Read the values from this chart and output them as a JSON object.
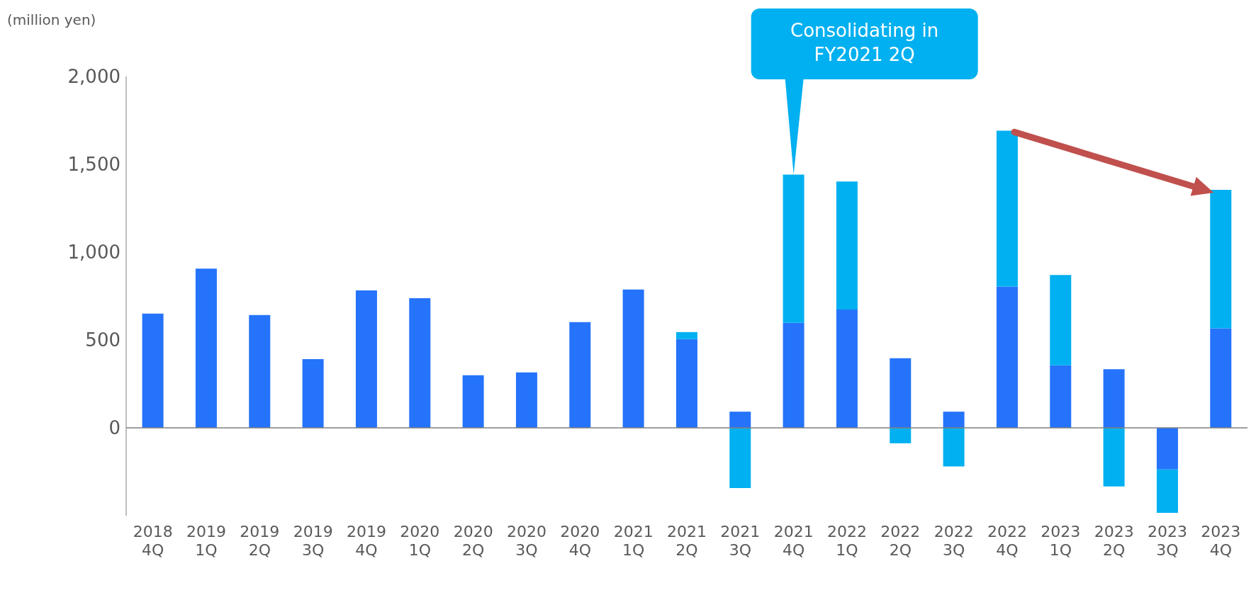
{
  "chart_data": {
    "type": "bar",
    "stacked": true,
    "ylabel": "(million yen)",
    "categories": [
      "2018 4Q",
      "2019 1Q",
      "2019 2Q",
      "2019 3Q",
      "2019 4Q",
      "2020 1Q",
      "2020 2Q",
      "2020 3Q",
      "2020 4Q",
      "2021 1Q",
      "2021 2Q",
      "2021 3Q",
      "2021 4Q",
      "2022 1Q",
      "2022 2Q",
      "2022 3Q",
      "2022 4Q",
      "2023 1Q",
      "2023 2Q",
      "2023 3Q",
      "2023 4Q"
    ],
    "series": [
      {
        "color": "#2573fb",
        "values": [
          650,
          906,
          642,
          391,
          782,
          738,
          299,
          316,
          602,
          787,
          505,
          92,
          598,
          673,
          396,
          92,
          804,
          356,
          334,
          -237,
          567
        ]
      },
      {
        "color": "#00b0f0",
        "values": [
          0,
          0,
          0,
          0,
          0,
          0,
          0,
          0,
          0,
          0,
          40,
          -343,
          844,
          729,
          -88,
          -220,
          888,
          514,
          -334,
          -247,
          788
        ]
      }
    ],
    "ylim": [
      -500,
      2000
    ],
    "yticks": [
      {
        "value": 0,
        "label": "0"
      },
      {
        "value": 500,
        "label": "500"
      },
      {
        "value": 1000,
        "label": "1,000"
      },
      {
        "value": 1500,
        "label": "1,500"
      },
      {
        "value": 2000,
        "label": "2,000"
      }
    ],
    "annotations": [
      {
        "text": "Consolidating in FY2021 2Q",
        "x": "2021 4Q",
        "y": 1442
      }
    ]
  }
}
